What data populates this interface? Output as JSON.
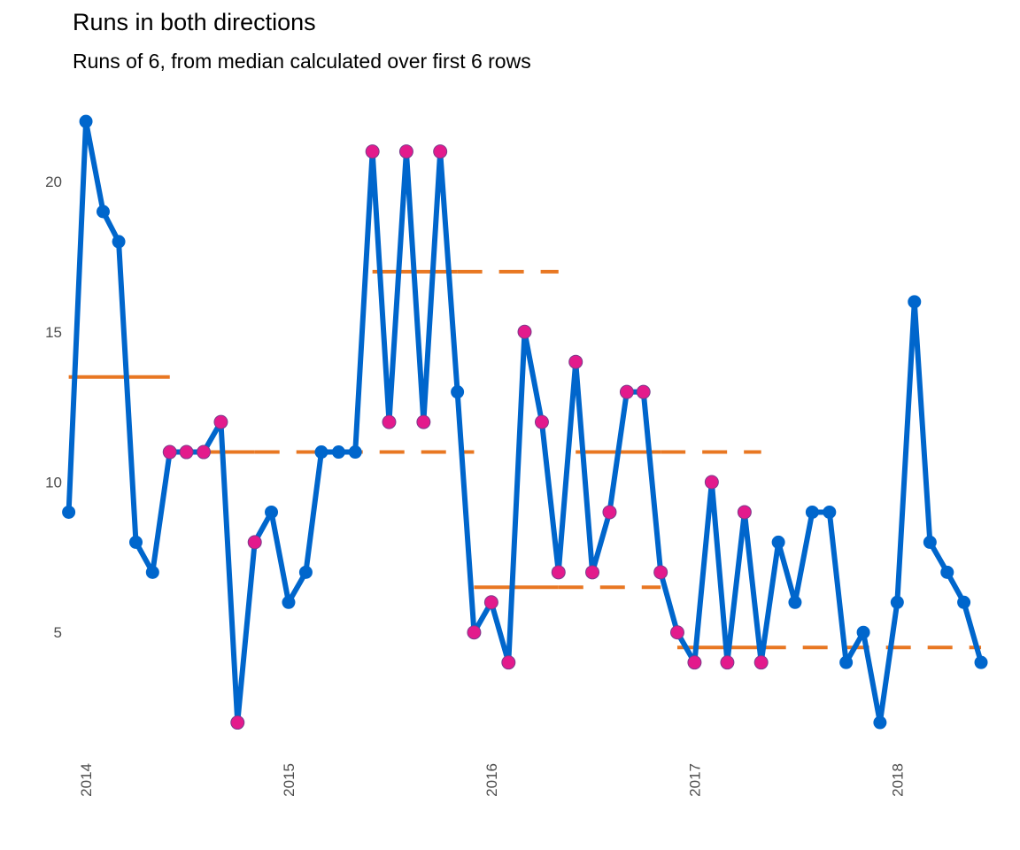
{
  "chart_data": {
    "type": "line",
    "title": "Runs in both directions",
    "subtitle": "Runs of 6, from median calculated over first 6 rows",
    "xlabel": "",
    "ylabel": "",
    "ylim": [
      1.0,
      22.8
    ],
    "xlim": [
      "2013-12-08",
      "2018-07-14"
    ],
    "grid": false,
    "y_ticks": [
      5,
      10,
      15,
      20
    ],
    "x_ticks": [
      {
        "date": "2014-01-01",
        "label": "2014"
      },
      {
        "date": "2015-01-01",
        "label": "2015"
      },
      {
        "date": "2016-01-01",
        "label": "2016"
      },
      {
        "date": "2017-01-01",
        "label": "2017"
      },
      {
        "date": "2018-01-01",
        "label": "2018"
      }
    ],
    "series": [
      {
        "color": "#0066CC",
        "start_month": "2013-12",
        "values": [
          9,
          22,
          19,
          18,
          8,
          7,
          11,
          11,
          11,
          12,
          2,
          8,
          9,
          6,
          7,
          11,
          11,
          11,
          21,
          12,
          21,
          12,
          21,
          13,
          5,
          6,
          4,
          15,
          12,
          7,
          14,
          7,
          9,
          13,
          13,
          7,
          5,
          4,
          10,
          4,
          9,
          4,
          8,
          6,
          9,
          9,
          4,
          5,
          2,
          6,
          16,
          8,
          7,
          6,
          4
        ],
        "highlighted_indices": [
          6,
          7,
          8,
          9,
          10,
          11,
          18,
          19,
          20,
          21,
          22,
          24,
          25,
          26,
          27,
          28,
          29,
          30,
          31,
          32,
          33,
          34,
          35,
          36,
          37,
          38,
          39,
          40,
          41
        ]
      }
    ],
    "highlight_color": "#E31A8C",
    "median_segments": [
      {
        "color": "#E87722",
        "value": 13.5,
        "solid_from": "2013-12",
        "solid_to": "2014-06",
        "dashed_to": "2014-06"
      },
      {
        "color": "#E87722",
        "value": 11,
        "solid_from": "2014-06",
        "solid_to": "2014-11",
        "dashed_to": "2015-12"
      },
      {
        "color": "#E87722",
        "value": 17,
        "solid_from": "2015-06",
        "solid_to": "2015-11",
        "dashed_to": "2016-05"
      },
      {
        "color": "#E87722",
        "value": 6.5,
        "solid_from": "2015-12",
        "solid_to": "2016-05",
        "dashed_to": "2016-11"
      },
      {
        "color": "#E87722",
        "value": 11,
        "solid_from": "2016-06",
        "solid_to": "2016-11",
        "dashed_to": "2017-05"
      },
      {
        "color": "#E87722",
        "value": 4.5,
        "solid_from": "2016-12",
        "solid_to": "2017-05",
        "dashed_to": "2018-06"
      }
    ]
  }
}
